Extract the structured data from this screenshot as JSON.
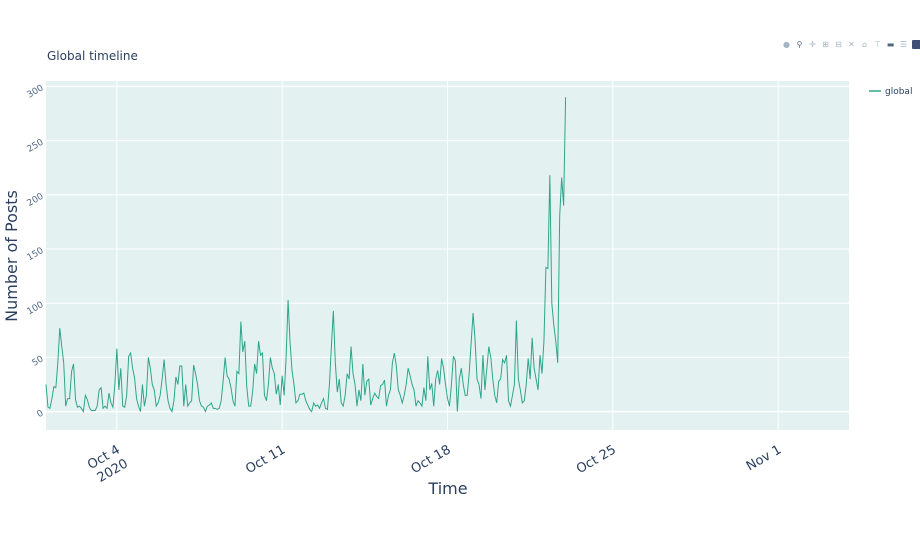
{
  "chart_data": {
    "type": "line",
    "title": "Global timeline",
    "xlabel": "Time",
    "ylabel": "Number of Posts",
    "xlim": [
      "2020-10-01T00:00",
      "2020-11-04T00:00"
    ],
    "ylim": [
      -17,
      305
    ],
    "yticks": [
      0,
      50,
      100,
      150,
      200,
      250,
      300
    ],
    "xticks": [
      {
        "date": "2020-10-04T00:00",
        "label": "Oct 4",
        "sublabel": "2020"
      },
      {
        "date": "2020-10-11T00:00",
        "label": "Oct 11"
      },
      {
        "date": "2020-10-18T00:00",
        "label": "Oct 18"
      },
      {
        "date": "2020-10-25T00:00",
        "label": "Oct 25"
      },
      {
        "date": "2020-11-01T00:00",
        "label": "Nov 1"
      }
    ],
    "grid": true,
    "legend": "top-right",
    "plot_background": "#e3f2f1",
    "series": [
      {
        "name": "global",
        "color": "#2ea58a",
        "start": "2020-10-01T00:00",
        "interval_hours": 2,
        "values": [
          25,
          4,
          3,
          12,
          23,
          22,
          45,
          77,
          60,
          45,
          5,
          12,
          12,
          37,
          44,
          11,
          4,
          5,
          3,
          0,
          15,
          11,
          4,
          1,
          1,
          1,
          5,
          20,
          22,
          3,
          5,
          3,
          17,
          8,
          4,
          25,
          58,
          20,
          40,
          5,
          4,
          15,
          51,
          54,
          40,
          31,
          12,
          5,
          0,
          25,
          5,
          15,
          50,
          40,
          25,
          20,
          5,
          8,
          15,
          30,
          48,
          25,
          10,
          3,
          0,
          10,
          32,
          25,
          42,
          42,
          5,
          25,
          5,
          8,
          10,
          43,
          35,
          25,
          10,
          5,
          4,
          0,
          5,
          6,
          8,
          3,
          3,
          2,
          3,
          10,
          28,
          50,
          33,
          30,
          22,
          10,
          5,
          37,
          35,
          83,
          55,
          65,
          23,
          5,
          5,
          18,
          44,
          35,
          65,
          52,
          54,
          15,
          10,
          25,
          50,
          40,
          35,
          16,
          25,
          6,
          33,
          15,
          50,
          103,
          64,
          38,
          25,
          8,
          10,
          16,
          16,
          17,
          10,
          6,
          2,
          0,
          8,
          5,
          6,
          3,
          8,
          12,
          3,
          2,
          25,
          60,
          93,
          45,
          18,
          30,
          8,
          5,
          15,
          35,
          30,
          60,
          35,
          25,
          5,
          20,
          10,
          44,
          15,
          28,
          30,
          6,
          12,
          17,
          14,
          12,
          24,
          25,
          29,
          5,
          15,
          20,
          45,
          54,
          42,
          20,
          15,
          8,
          15,
          25,
          40,
          33,
          25,
          20,
          5,
          10,
          8,
          5,
          22,
          10,
          51,
          20,
          26,
          5,
          30,
          38,
          25,
          49,
          40,
          25,
          12,
          5,
          25,
          51,
          47,
          0,
          30,
          40,
          25,
          15,
          15,
          35,
          63,
          91,
          66,
          30,
          25,
          12,
          52,
          20,
          40,
          60,
          50,
          30,
          15,
          8,
          28,
          30,
          48,
          45,
          52,
          10,
          5,
          15,
          25,
          84,
          30,
          20,
          8,
          10,
          25,
          49,
          30,
          68,
          40,
          30,
          20,
          52,
          35,
          65,
          133,
          132,
          218,
          100,
          80,
          65,
          45,
          180,
          216,
          190,
          290
        ]
      }
    ]
  },
  "modebar": {
    "buttons": [
      "camera-icon",
      "zoom-icon",
      "pan-icon",
      "zoom-in-icon",
      "zoom-out-icon",
      "autoscale-icon",
      "reset-axes-icon",
      "spike-lines-icon",
      "hover-closest-icon",
      "hover-compare-icon",
      "plotly-logo-icon"
    ]
  }
}
